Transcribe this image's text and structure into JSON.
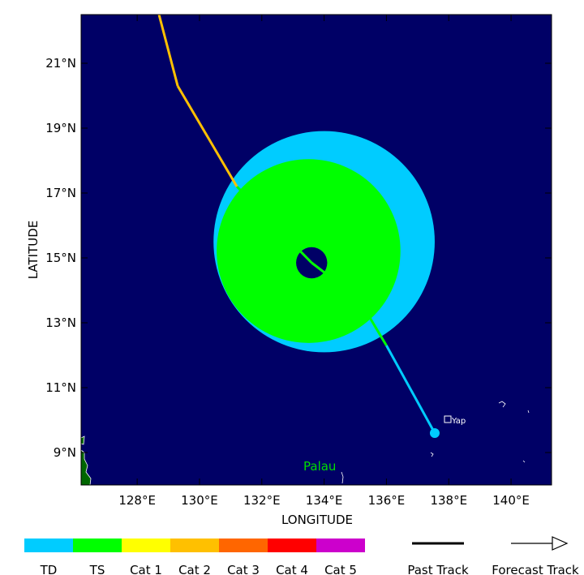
{
  "map": {
    "x_axis_title": "LONGITUDE",
    "y_axis_title": "LATITUDE",
    "lon_ticks": [
      {
        "value": 128,
        "label": "128°E"
      },
      {
        "value": 130,
        "label": "130°E"
      },
      {
        "value": 132,
        "label": "132°E"
      },
      {
        "value": 134,
        "label": "134°E"
      },
      {
        "value": 136,
        "label": "136°E"
      },
      {
        "value": 138,
        "label": "138°E"
      },
      {
        "value": 140,
        "label": "140°E"
      }
    ],
    "lat_ticks": [
      {
        "value": 9,
        "label": "9°N"
      },
      {
        "value": 11,
        "label": "11°N"
      },
      {
        "value": 13,
        "label": "13°N"
      },
      {
        "value": 15,
        "label": "15°N"
      },
      {
        "value": 17,
        "label": "17°N"
      },
      {
        "value": 19,
        "label": "19°N"
      },
      {
        "value": 21,
        "label": "21°N"
      }
    ],
    "extent": {
      "lon_min": 126.2,
      "lon_max": 141.3,
      "lat_min": 8.0,
      "lat_max": 22.5
    },
    "ocean_color": "#000066",
    "place_labels": [
      {
        "name": "Palau",
        "color": "#00dd00"
      },
      {
        "name": "Yap",
        "color": "#ffffff"
      }
    ]
  },
  "wind_radii": {
    "center": {
      "lon": 134.0,
      "lat": 15.5
    },
    "td_radius_deg": 3.55,
    "ts_radius_deg": 2.95,
    "eye_center": {
      "lon": 133.6,
      "lat": 14.85
    },
    "eye_radius_deg": 0.5
  },
  "track": [
    {
      "lon": 137.55,
      "lat": 9.6,
      "intensity": "TD"
    },
    {
      "lon": 136.0,
      "lat": 12.3,
      "intensity": "TD"
    },
    {
      "lon": 135.1,
      "lat": 13.75,
      "intensity": "TS"
    },
    {
      "lon": 133.6,
      "lat": 14.85,
      "intensity": "TS"
    },
    {
      "lon": 131.2,
      "lat": 17.2,
      "intensity": "TS"
    },
    {
      "lon": 129.3,
      "lat": 20.3,
      "intensity": "Cat 2"
    },
    {
      "lon": 128.7,
      "lat": 22.5,
      "intensity": "Cat 2"
    }
  ],
  "current_position": {
    "lon": 137.55,
    "lat": 9.6
  },
  "legend": {
    "categories": [
      {
        "label": "TD",
        "color": "#00ccff"
      },
      {
        "label": "TS",
        "color": "#00ff00"
      },
      {
        "label": "Cat 1",
        "color": "#ffff00"
      },
      {
        "label": "Cat 2",
        "color": "#ffc000"
      },
      {
        "label": "Cat 3",
        "color": "#ff6600"
      },
      {
        "label": "Cat 4",
        "color": "#ff0000"
      },
      {
        "label": "Cat 5",
        "color": "#cc00cc"
      }
    ],
    "past_track_label": "Past Track",
    "forecast_track_label": "Forecast Track"
  }
}
